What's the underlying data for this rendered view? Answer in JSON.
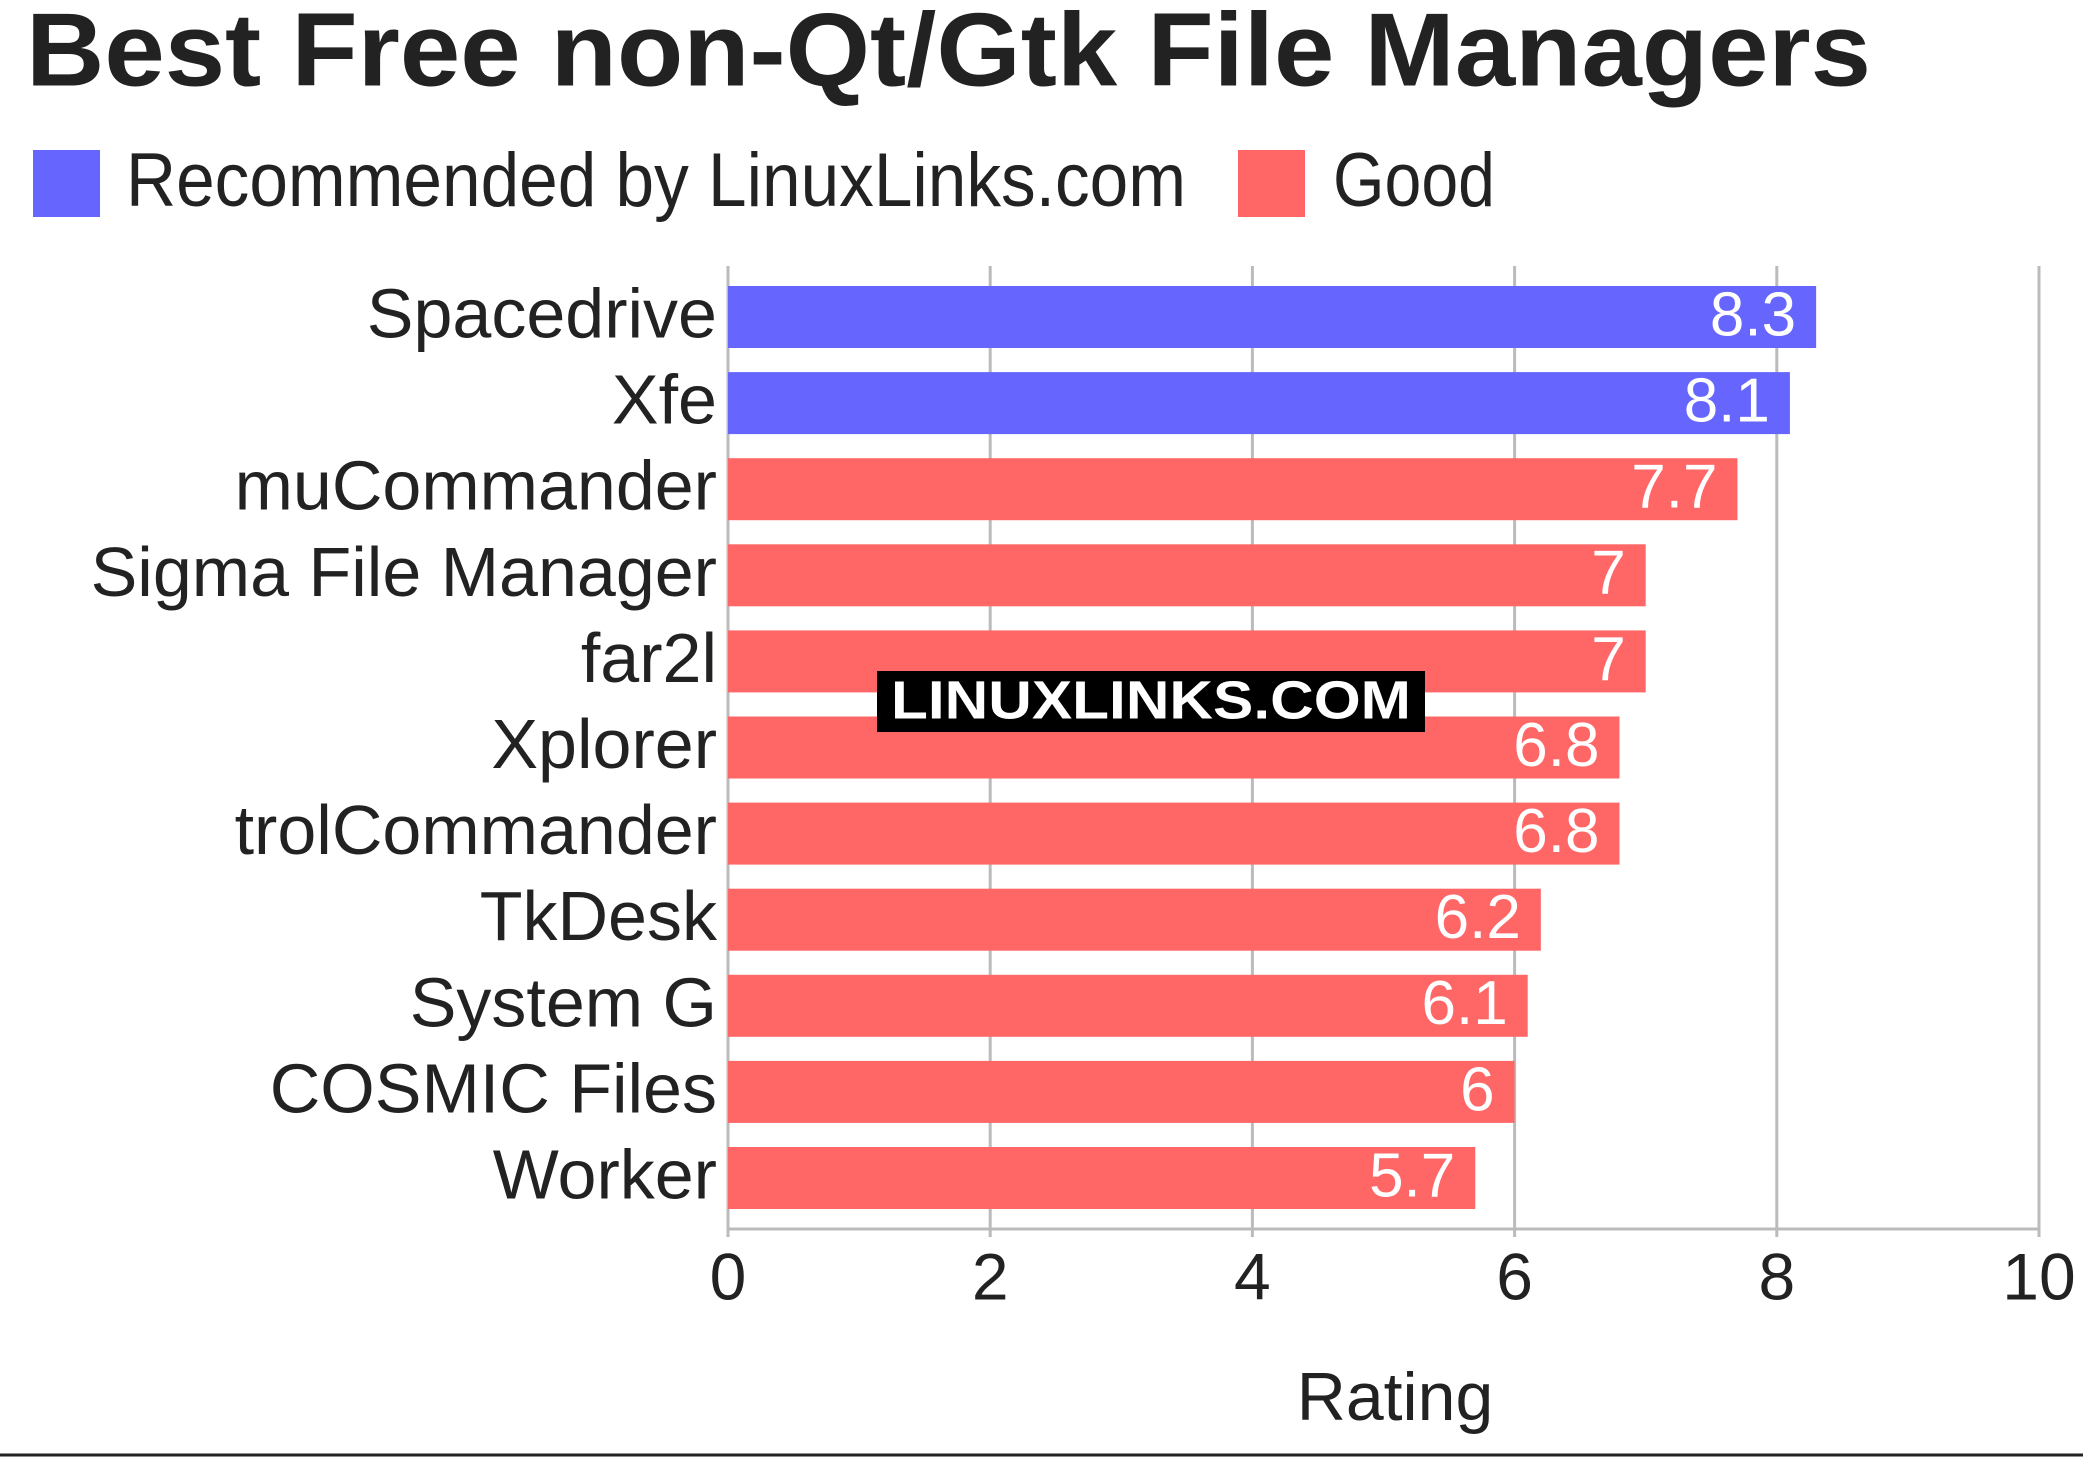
{
  "chart_data": {
    "type": "bar",
    "orientation": "horizontal",
    "title": "Best Free non-Qt/Gtk File Managers",
    "categories": [
      "Spacedrive",
      "Xfe",
      "muCommander",
      "Sigma File Manager",
      "far2l",
      "Xplorer",
      "trolCommander",
      "TkDesk",
      "System G",
      "COSMIC Files",
      "Worker"
    ],
    "series": [
      {
        "name": "Recommended by LinuxLinks.com",
        "color": "#6666ff",
        "values": [
          8.3,
          8.1,
          null,
          null,
          null,
          null,
          null,
          null,
          null,
          null,
          null
        ]
      },
      {
        "name": "Good",
        "color": "#ff6666",
        "values": [
          null,
          null,
          7.7,
          7,
          7,
          6.8,
          6.8,
          6.2,
          6.1,
          6,
          5.7
        ]
      }
    ],
    "xlabel": "Rating",
    "xlim": [
      0,
      10
    ],
    "xticks": [
      0,
      2,
      4,
      6,
      8,
      10
    ],
    "grid": true,
    "watermark": "LINUXLINKS.COM"
  }
}
